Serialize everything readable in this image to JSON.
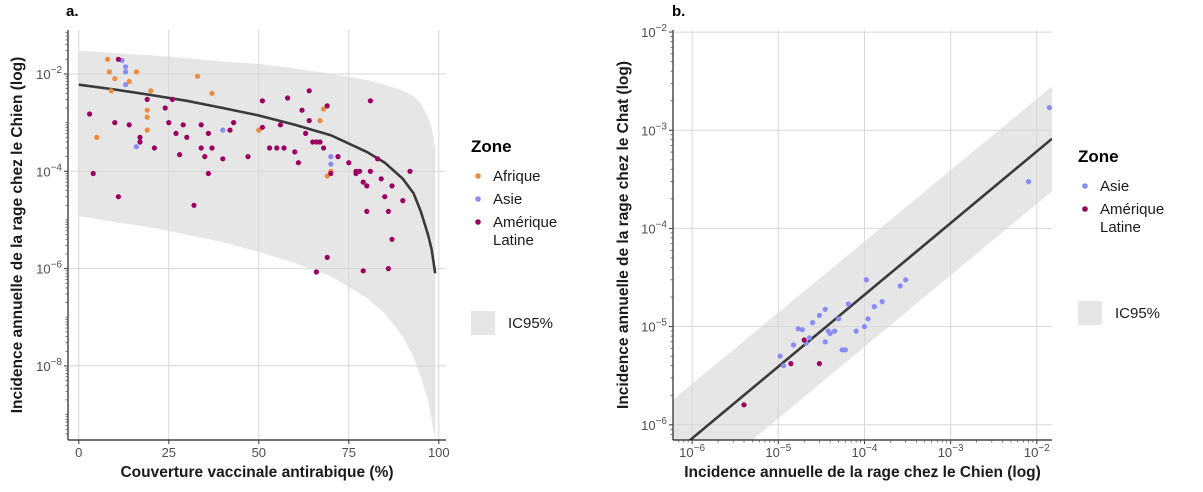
{
  "chart_data": [
    {
      "panel_label": "a.",
      "type": "scatter",
      "xlabel": "Couverture vaccinale antirabique (%)",
      "ylabel": "Incidence annuelle de la rage chez le Chien (log)",
      "x_scale": "linear",
      "y_scale": "log",
      "xlim": [
        -3,
        102
      ],
      "ylim": [
        3e-10,
        0.08
      ],
      "x_ticks": [
        0,
        25,
        50,
        75,
        100
      ],
      "x_tick_labels": [
        "0",
        "25",
        "50",
        "75",
        "100"
      ],
      "y_ticks": [
        1e-08,
        1e-06,
        0.0001,
        0.01
      ],
      "y_tick_labels": [
        "10^-8",
        "10^-6",
        "10^-4",
        "10^-2"
      ],
      "grid": true,
      "legend_placement": "right",
      "legend": {
        "title": "Zone",
        "entries": [
          "Afrique",
          "Asie",
          "Amérique Latine"
        ],
        "entry_lines": [
          [
            "Afrique"
          ],
          [
            "Asie"
          ],
          [
            "Amérique",
            "Latine"
          ]
        ],
        "band_label": "IC95%"
      },
      "colors": {
        "Afrique": "#f08a3c",
        "Asie": "#8a8cf5",
        "Amérique Latine": "#9b0060",
        "fit": "#3a3a3a",
        "band": "#e6e6e6"
      },
      "series": [
        {
          "name": "Afrique",
          "points": [
            [
              8,
              0.02
            ],
            [
              8.5,
              0.011
            ],
            [
              9,
              0.0045
            ],
            [
              10,
              0.008
            ],
            [
              14,
              0.007
            ],
            [
              16,
              0.011
            ],
            [
              19,
              0.0018
            ],
            [
              19,
              0.0013
            ],
            [
              19,
              0.0007
            ],
            [
              20,
              0.0045
            ],
            [
              5,
              0.0005
            ],
            [
              33,
              0.009
            ],
            [
              37,
              0.004
            ],
            [
              50,
              0.0007
            ],
            [
              67,
              0.0011
            ],
            [
              68,
              0.0019
            ],
            [
              69,
              8e-05
            ],
            [
              70,
              0.0001
            ]
          ]
        },
        {
          "name": "Asie",
          "points": [
            [
              12,
              0.019
            ],
            [
              13,
              0.014
            ],
            [
              13,
              0.011
            ],
            [
              13,
              0.006
            ],
            [
              16,
              0.00032
            ],
            [
              40,
              0.0007
            ],
            [
              70,
              0.0002
            ],
            [
              70,
              0.00014
            ]
          ]
        },
        {
          "name": "Amérique Latine",
          "points": [
            [
              3,
              0.0015
            ],
            [
              4,
              9e-05
            ],
            [
              10,
              0.001
            ],
            [
              11,
              3e-05
            ],
            [
              11,
              0.02
            ],
            [
              14,
              0.0009
            ],
            [
              17,
              0.0005
            ],
            [
              17,
              0.0004
            ],
            [
              19,
              0.003
            ],
            [
              21,
              0.0003
            ],
            [
              24,
              0.002
            ],
            [
              25,
              0.001
            ],
            [
              26,
              0.003
            ],
            [
              27,
              0.0006
            ],
            [
              28,
              0.00022
            ],
            [
              29,
              0.0009
            ],
            [
              30,
              0.0005
            ],
            [
              32,
              2e-05
            ],
            [
              34,
              0.0009
            ],
            [
              34,
              0.0003
            ],
            [
              35,
              0.0002
            ],
            [
              36,
              0.0006
            ],
            [
              36,
              9e-05
            ],
            [
              37,
              0.0003
            ],
            [
              40,
              0.00018
            ],
            [
              42,
              0.0007
            ],
            [
              43,
              0.001
            ],
            [
              47,
              0.0002
            ],
            [
              51,
              0.0008
            ],
            [
              51,
              0.0028
            ],
            [
              53,
              0.0003
            ],
            [
              55,
              0.0003
            ],
            [
              56,
              0.0009
            ],
            [
              57,
              0.0003
            ],
            [
              58,
              0.0032
            ],
            [
              60,
              0.00025
            ],
            [
              61,
              0.00015
            ],
            [
              62,
              0.0018
            ],
            [
              63,
              0.0006
            ],
            [
              64,
              0.0011
            ],
            [
              64,
              0.0045
            ],
            [
              65,
              0.0004
            ],
            [
              66,
              0.0004
            ],
            [
              66,
              8.5e-07
            ],
            [
              67,
              0.0004
            ],
            [
              68,
              0.0003
            ],
            [
              69,
              1.7e-06
            ],
            [
              69,
              0.0022
            ],
            [
              70,
              9e-05
            ],
            [
              72,
              0.0002
            ],
            [
              75,
              0.00015
            ],
            [
              77,
              0.0001
            ],
            [
              77,
              9e-05
            ],
            [
              78,
              0.0001
            ],
            [
              79,
              9e-07
            ],
            [
              79,
              6e-05
            ],
            [
              80,
              1.5e-05
            ],
            [
              80,
              5e-05
            ],
            [
              81,
              0.0001
            ],
            [
              81,
              0.0028
            ],
            [
              83,
              0.00018
            ],
            [
              84,
              7e-05
            ],
            [
              85,
              3e-05
            ],
            [
              86,
              1e-06
            ],
            [
              86,
              1.5e-05
            ],
            [
              87,
              4e-06
            ],
            [
              87,
              5e-05
            ],
            [
              90,
              2.5e-05
            ],
            [
              92,
              0.0001
            ]
          ]
        }
      ],
      "fit_line": {
        "x": [
          0,
          10,
          20,
          30,
          40,
          50,
          60,
          70,
          80,
          85,
          90,
          93,
          95,
          97,
          98,
          99
        ],
        "y": [
          0.006,
          0.0048,
          0.0037,
          0.0028,
          0.002,
          0.0014,
          0.0009,
          0.00055,
          0.00025,
          0.00015,
          7e-05,
          3.5e-05,
          1.5e-05,
          5e-06,
          2.5e-06,
          8e-07
        ]
      },
      "ci95": {
        "x": [
          0,
          10,
          20,
          30,
          40,
          50,
          60,
          70,
          80,
          85,
          90,
          93,
          95,
          97,
          98,
          99
        ],
        "upper": [
          0.03,
          0.027,
          0.024,
          0.021,
          0.018,
          0.016,
          0.013,
          0.01,
          0.0075,
          0.006,
          0.0045,
          0.0035,
          0.0025,
          0.0013,
          0.0008,
          0.0003
        ],
        "lower": [
          1.2e-05,
          9e-06,
          7e-06,
          5e-06,
          3.5e-06,
          2.2e-06,
          1.3e-06,
          7e-07,
          2.5e-07,
          1.2e-07,
          4e-08,
          1.5e-08,
          6e-09,
          2e-09,
          8e-10,
          3e-10
        ]
      }
    },
    {
      "panel_label": "b.",
      "type": "scatter",
      "xlabel": "Incidence annuelle de la rage chez le Chien (log)",
      "ylabel": "Incidence annuelle de la rage chez le Chat (log)",
      "x_scale": "log",
      "y_scale": "log",
      "xlim": [
        6e-07,
        0.015
      ],
      "ylim": [
        7e-07,
        0.0105
      ],
      "x_ticks": [
        1e-06,
        1e-05,
        0.0001,
        0.001,
        0.01
      ],
      "x_tick_labels": [
        "10^-6",
        "10^-5",
        "10^-4",
        "10^-3",
        "10^-2"
      ],
      "y_ticks": [
        1e-06,
        1e-05,
        0.0001,
        0.001,
        0.01
      ],
      "y_tick_labels": [
        "10^-6",
        "10^-5",
        "10^-4",
        "10^-3",
        "10^-2"
      ],
      "grid": true,
      "legend_placement": "right",
      "legend": {
        "title": "Zone",
        "entries": [
          "Asie",
          "Amérique Latine"
        ],
        "entry_lines": [
          [
            "Asie"
          ],
          [
            "Amérique",
            "Latine"
          ]
        ],
        "band_label": "IC95%"
      },
      "colors": {
        "Asie": "#8a8cf5",
        "Amérique Latine": "#9b0060",
        "fit": "#3a3a3a",
        "band": "#e6e6e6"
      },
      "series": [
        {
          "name": "Asie",
          "points": [
            [
              1.05e-05,
              5e-06
            ],
            [
              1.15e-05,
              4e-06
            ],
            [
              1.5e-05,
              6.5e-06
            ],
            [
              1.7e-05,
              9.5e-06
            ],
            [
              1.9e-05,
              9.3e-06
            ],
            [
              2.1e-05,
              6.8e-06
            ],
            [
              2.3e-05,
              7.7e-06
            ],
            [
              2.5e-05,
              1.1e-05
            ],
            [
              3e-05,
              1.3e-05
            ],
            [
              3.5e-05,
              1.5e-05
            ],
            [
              3.5e-05,
              7e-06
            ],
            [
              3.8e-05,
              9e-06
            ],
            [
              4e-05,
              8.5e-06
            ],
            [
              4.5e-05,
              9e-06
            ],
            [
              5e-05,
              1.2e-05
            ],
            [
              5.5e-05,
              5.8e-06
            ],
            [
              6e-05,
              5.8e-06
            ],
            [
              6.5e-05,
              1.7e-05
            ],
            [
              8e-05,
              9e-06
            ],
            [
              0.0001,
              1e-05
            ],
            [
              0.000105,
              3e-05
            ],
            [
              0.00011,
              1.2e-05
            ],
            [
              0.00013,
              1.6e-05
            ],
            [
              0.00016,
              1.8e-05
            ],
            [
              0.00026,
              2.6e-05
            ],
            [
              0.0003,
              3e-05
            ],
            [
              0.008,
              0.0003
            ],
            [
              0.014,
              0.0017
            ]
          ]
        },
        {
          "name": "Amérique Latine",
          "points": [
            [
              4e-06,
              1.6e-06
            ],
            [
              1.4e-05,
              4.2e-06
            ],
            [
              2e-05,
              7.3e-06
            ],
            [
              3e-05,
              4.2e-06
            ]
          ]
        }
      ],
      "fit_line": {
        "x": [
          6e-07,
          0.015
        ],
        "y": [
          5e-07,
          0.00082
        ]
      },
      "ci95": {
        "x": [
          6e-07,
          0.015
        ],
        "upper": [
          1.8e-06,
          0.0028
        ],
        "lower": [
          1.5e-07,
          0.00024
        ]
      }
    }
  ]
}
